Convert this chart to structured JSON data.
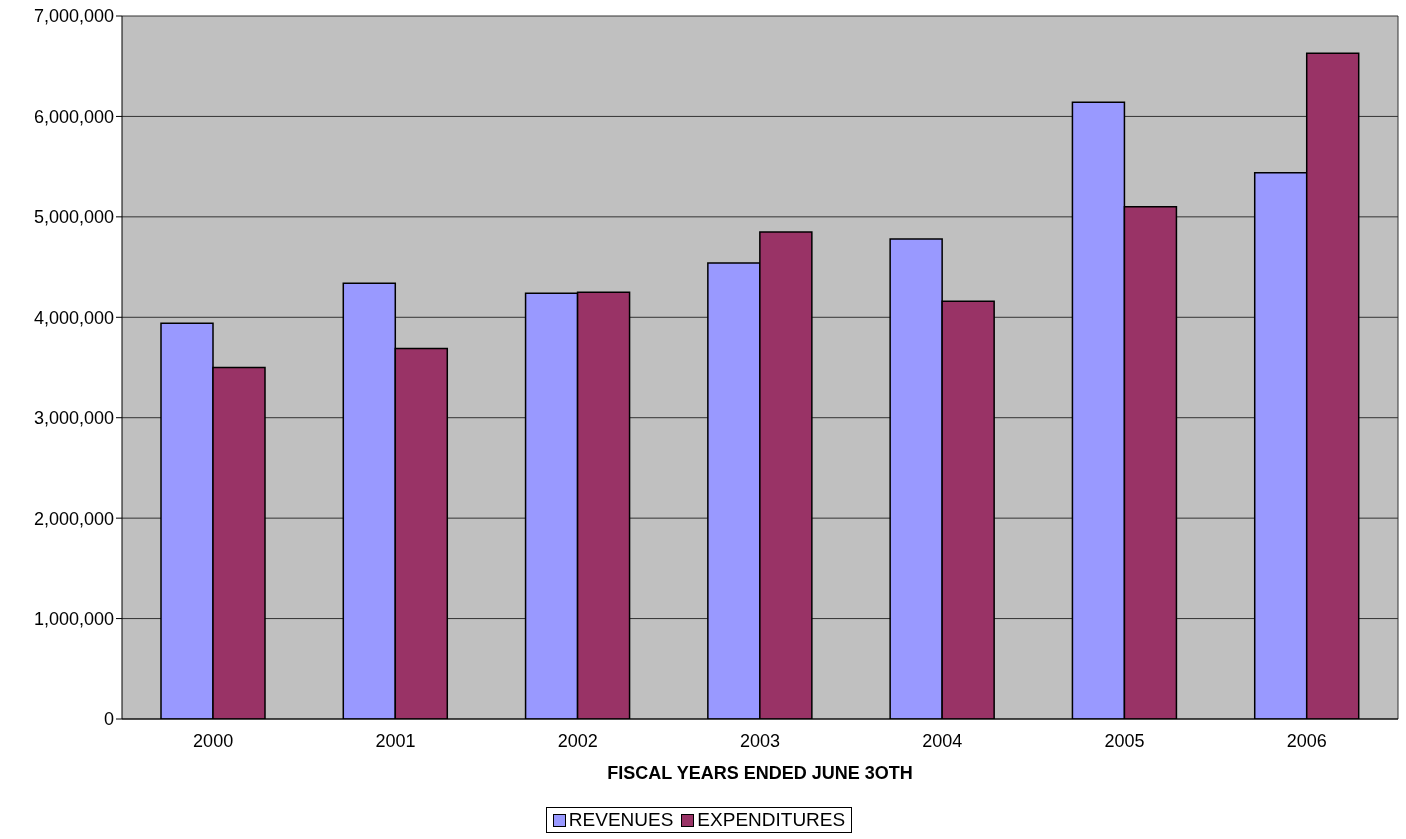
{
  "chart_data": {
    "type": "bar",
    "xlabel": "FISCAL YEARS ENDED JUNE 3OTH",
    "categories": [
      "2000",
      "2001",
      "2002",
      "2003",
      "2004",
      "2005",
      "2006"
    ],
    "series": [
      {
        "name": "REVENUES",
        "color": "#9999ff",
        "values": [
          3940000,
          4340000,
          4240000,
          4540000,
          4780000,
          6140000,
          5440000
        ]
      },
      {
        "name": "EXPENDITURES",
        "color": "#993366",
        "values": [
          3500000,
          3690000,
          4250000,
          4850000,
          4160000,
          5100000,
          6630000
        ]
      }
    ],
    "ylim": [
      0,
      7000000
    ],
    "yticks": [
      0,
      {
        "value": 1000000,
        "label": "1,000,000"
      },
      {
        "value": 2000000,
        "label": "2,000,000"
      },
      {
        "value": 3000000,
        "label": "3,000,000"
      },
      {
        "value": 4000000,
        "label": "4,000,000"
      },
      {
        "value": 5000000,
        "label": "5,000,000"
      },
      {
        "value": 6000000,
        "label": "6,000,000"
      },
      {
        "value": 7000000,
        "label": "7,000,000"
      }
    ],
    "grid": "y",
    "legend": "bottom"
  }
}
